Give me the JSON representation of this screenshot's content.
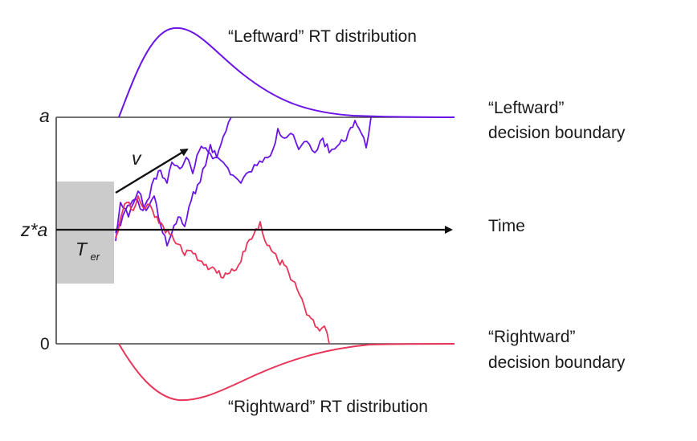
{
  "labels": {
    "top_distribution": "“Leftward” RT distribution",
    "bottom_distribution": "“Rightward” RT distribution",
    "upper_boundary_line1": "“Leftward”",
    "upper_boundary_line2": "decision boundary",
    "lower_boundary_line1": "“Rightward”",
    "lower_boundary_line2": "decision boundary",
    "time_axis": "Time",
    "upper_boundary_value": "a",
    "start_point_value": "z*a",
    "lower_boundary_value": "0",
    "drift_rate": "v",
    "non_decision_time_main": "T",
    "non_decision_time_sub": "er"
  },
  "colors": {
    "leftward": "#6a14e6",
    "rightward": "#e8365a",
    "boundary_lines": "#444444",
    "arrows": "#111111",
    "non_decision_box": "#cbcbcb"
  }
}
